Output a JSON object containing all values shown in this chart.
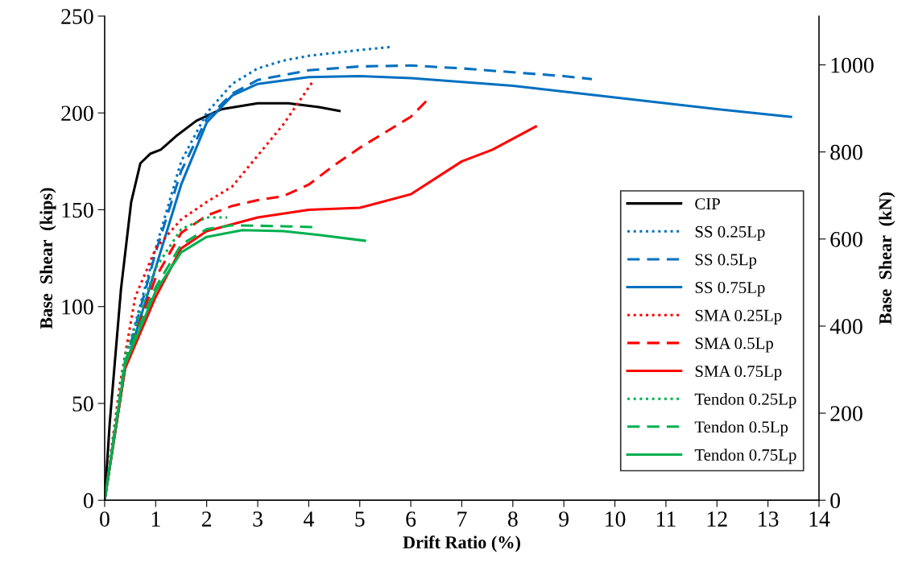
{
  "chart_data": {
    "type": "line",
    "xlabel": "Drift Ratio (%)",
    "ylabel": "Base  Shear  (kips)",
    "y2label": "Base  Shear  (kN)",
    "xlim": [
      0,
      14
    ],
    "xticks": [
      0,
      1,
      2,
      3,
      4,
      5,
      6,
      7,
      8,
      9,
      10,
      11,
      12,
      13,
      14
    ],
    "ylim": [
      0,
      250
    ],
    "yticks": [
      0,
      50,
      100,
      150,
      200,
      250
    ],
    "y2lim": [
      0,
      1112
    ],
    "y2ticks": [
      0,
      200,
      400,
      600,
      800,
      1000
    ],
    "grid": false,
    "legend": "right",
    "marker": "none",
    "series": [
      {
        "name": "CIP",
        "color": "#000000",
        "line_style": "solid",
        "x": [
          0,
          0.1,
          0.32,
          0.52,
          0.7,
          0.9,
          1.1,
          1.4,
          1.8,
          2.3,
          3,
          3.6,
          4.2,
          4.6
        ],
        "values": [
          0,
          40,
          109,
          154,
          174,
          179,
          181,
          188,
          196,
          202,
          205,
          205,
          203,
          201
        ]
      },
      {
        "name": "SS 0.25Lp",
        "color": "#0070c0",
        "line_style": "dotted",
        "x": [
          0,
          0.4,
          1,
          1.5,
          2,
          2.5,
          3,
          3.5,
          4,
          4.5,
          5,
          5.6
        ],
        "values": [
          0,
          72,
          130,
          175,
          200,
          215,
          223,
          227,
          229.5,
          231,
          232.5,
          234
        ]
      },
      {
        "name": "SS 0.5Lp",
        "color": "#0070c0",
        "line_style": "dashed",
        "x": [
          0,
          0.4,
          1,
          1.5,
          2,
          2.5,
          3,
          4,
          5,
          6,
          7,
          8,
          9,
          9.55
        ],
        "values": [
          0,
          70,
          128,
          170,
          197,
          210,
          217,
          222,
          224,
          224.5,
          223,
          221,
          219,
          217.5
        ]
      },
      {
        "name": "SS 0.75Lp",
        "color": "#0070c0",
        "line_style": "solid",
        "x": [
          0,
          0.4,
          1,
          1.5,
          2,
          2.5,
          3,
          4,
          5,
          6,
          8,
          10,
          12,
          13.45
        ],
        "values": [
          0,
          68,
          120,
          163,
          195,
          209,
          215,
          218.5,
          219,
          218,
          214,
          208,
          202,
          198
        ]
      },
      {
        "name": "SMA 0.25Lp",
        "color": "#ff0000",
        "line_style": "dotted",
        "x": [
          0,
          0.3,
          0.6,
          1,
          1.5,
          2,
          2.5,
          3,
          3.5,
          4.1
        ],
        "values": [
          0,
          60,
          105,
          130,
          145,
          154,
          162,
          178,
          194,
          217
        ]
      },
      {
        "name": "SMA 0.5Lp",
        "color": "#ff0000",
        "line_style": "dashed",
        "x": [
          0,
          0.4,
          1,
          1.5,
          2,
          2.5,
          3,
          3.5,
          4,
          4.5,
          5,
          5.5,
          6,
          6.3
        ],
        "values": [
          0,
          70,
          115,
          138,
          147,
          152,
          155,
          157,
          163,
          173,
          182,
          190,
          198,
          206
        ]
      },
      {
        "name": "SMA 0.75Lp",
        "color": "#ff0000",
        "line_style": "solid",
        "x": [
          0,
          0.4,
          1,
          1.5,
          2,
          3,
          4,
          5,
          6,
          7,
          7.6,
          8.45
        ],
        "values": [
          0,
          68,
          105,
          130,
          139,
          146,
          150,
          151,
          158,
          175,
          181,
          193
        ]
      },
      {
        "name": "Tendon 0.25Lp",
        "color": "#00b050",
        "line_style": "dotted",
        "x": [
          0,
          0.4,
          1,
          1.5,
          2,
          2.4
        ],
        "values": [
          0,
          75,
          120,
          140,
          146,
          146
        ]
      },
      {
        "name": "Tendon 0.5Lp",
        "color": "#00b050",
        "line_style": "dashed",
        "x": [
          0,
          0.4,
          1,
          1.5,
          2,
          2.5,
          3.5,
          4.1
        ],
        "values": [
          0,
          72,
          110,
          132,
          140,
          142,
          141.5,
          141
        ]
      },
      {
        "name": "Tendon 0.75Lp",
        "color": "#00b050",
        "line_style": "solid",
        "x": [
          0,
          0.4,
          1,
          1.5,
          2,
          2.7,
          3.5,
          4.2,
          5.1
        ],
        "values": [
          0,
          70,
          108,
          128,
          136,
          139.5,
          139,
          137,
          134
        ]
      }
    ]
  }
}
